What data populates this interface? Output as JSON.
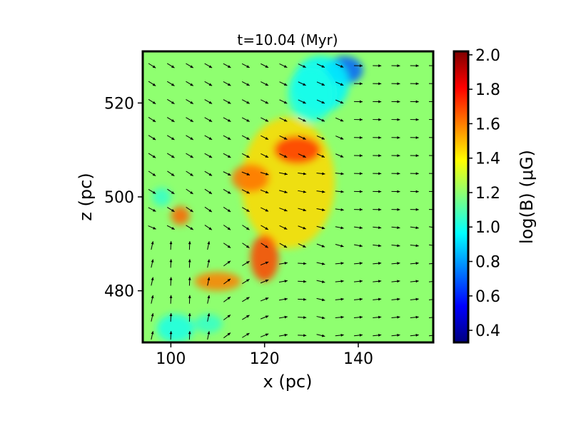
{
  "chart_data": {
    "type": "heatmap",
    "title": "t=10.04 (Myr)",
    "xlabel": "x (pc)",
    "ylabel": "z (pc)",
    "xlim": [
      94,
      156
    ],
    "ylim": [
      469,
      531
    ],
    "x_ticks": [
      100,
      120,
      140
    ],
    "y_ticks": [
      480,
      500,
      520
    ],
    "x_tick_labels": [
      "100",
      "120",
      "140"
    ],
    "y_tick_labels": [
      "480",
      "500",
      "520"
    ],
    "colorbar": {
      "label": "log(B) (μG)",
      "colormap": "jet",
      "range": [
        0.33,
        2.02
      ],
      "ticks": [
        0.4,
        0.6,
        0.8,
        1.0,
        1.2,
        1.4,
        1.6,
        1.8,
        2.0
      ],
      "tick_labels": [
        "0.4",
        "0.6",
        "0.8",
        "1.0",
        "1.2",
        "1.4",
        "1.6",
        "1.8",
        "2.0"
      ]
    },
    "field": {
      "background_log_b": 1.2,
      "features": [
        {
          "x": 125,
          "z": 503,
          "log_b": 1.45,
          "rx": 10,
          "rz": 14
        },
        {
          "x": 127,
          "z": 510,
          "log_b": 1.72,
          "rx": 5,
          "rz": 3
        },
        {
          "x": 117,
          "z": 504,
          "log_b": 1.62,
          "rx": 4,
          "rz": 3
        },
        {
          "x": 120,
          "z": 487,
          "log_b": 1.7,
          "rx": 3,
          "rz": 5
        },
        {
          "x": 110,
          "z": 482,
          "log_b": 1.6,
          "rx": 5,
          "rz": 2
        },
        {
          "x": 102,
          "z": 496,
          "log_b": 1.65,
          "rx": 2,
          "rz": 2
        },
        {
          "x": 137,
          "z": 527,
          "log_b": 0.7,
          "rx": 4,
          "rz": 3
        },
        {
          "x": 132,
          "z": 524,
          "log_b": 0.95,
          "rx": 6,
          "rz": 6
        },
        {
          "x": 130,
          "z": 522,
          "log_b": 1.0,
          "rx": 5,
          "rz": 6
        },
        {
          "x": 101,
          "z": 472,
          "log_b": 1.0,
          "rx": 4,
          "rz": 3
        },
        {
          "x": 108,
          "z": 473,
          "log_b": 1.05,
          "rx": 3,
          "rz": 2
        },
        {
          "x": 98,
          "z": 500,
          "log_b": 1.05,
          "rx": 2,
          "rz": 2
        }
      ]
    },
    "vectors": {
      "note": "unit-length magnetic field direction arrows on a regular grid",
      "x_start": 96,
      "x_step": 4,
      "nx": 16,
      "z_start": 470.5,
      "z_step": 3.83,
      "nz": 16
    }
  }
}
